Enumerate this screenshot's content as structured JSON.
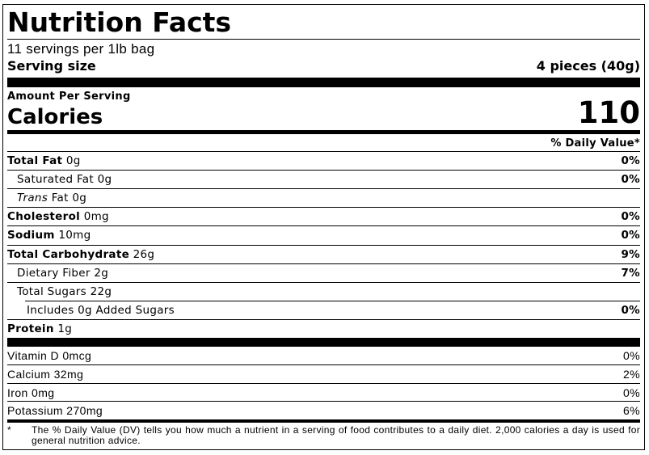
{
  "title": "Nutrition Facts",
  "servings": "11 servings per 1lb bag",
  "serving_size": {
    "label": "Serving size",
    "value": "4 pieces (40g)"
  },
  "amount_per_serving": "Amount Per Serving",
  "calories": {
    "label": "Calories",
    "value": "110"
  },
  "daily_value_header": "% Daily Value*",
  "nutrients": [
    {
      "name": "Total Fat",
      "amount": "0g",
      "dv": "0%"
    },
    {
      "name": "Saturated Fat",
      "amount": "0g",
      "dv": "0%"
    },
    {
      "prefix": "Trans",
      "name": "Fat",
      "amount": "0g"
    },
    {
      "name": "Cholesterol",
      "amount": "0mg",
      "dv": "0%"
    },
    {
      "name": "Sodium",
      "amount": "10mg",
      "dv": "0%"
    },
    {
      "name": "Total Carbohydrate",
      "amount": "26g",
      "dv": "9%"
    },
    {
      "name": "Dietary Fiber",
      "amount": "2g",
      "dv": "7%"
    },
    {
      "name": "Total Sugars",
      "amount": "22g"
    },
    {
      "name": "Includes 0g Added Sugars",
      "dv": "0%"
    },
    {
      "name": "Protein",
      "amount": "1g"
    }
  ],
  "vitamins": [
    {
      "name": "Vitamin D",
      "amount": "0mcg",
      "dv": "0%"
    },
    {
      "name": "Calcium",
      "amount": "32mg",
      "dv": "2%"
    },
    {
      "name": "Iron",
      "amount": "0mg",
      "dv": "0%"
    },
    {
      "name": "Potassium",
      "amount": "270mg",
      "dv": "6%"
    }
  ],
  "footnote": {
    "marker": "*",
    "text": "The % Daily Value (DV) tells you how much a nutrient in a serving of food contributes to a daily diet. 2,000 calories a day is used for general nutrition advice."
  }
}
